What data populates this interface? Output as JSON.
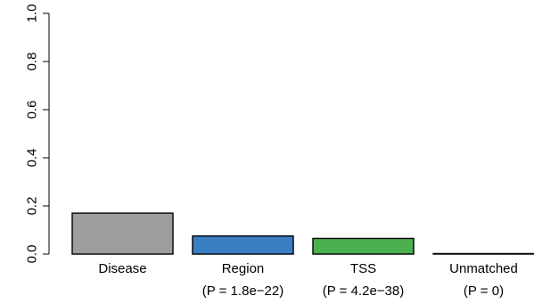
{
  "chart_data": {
    "type": "bar",
    "title": "",
    "xlabel": "",
    "ylabel": "",
    "ylim": [
      0,
      1
    ],
    "yticks": [
      "0.0",
      "0.2",
      "0.4",
      "0.6",
      "0.8",
      "1.0"
    ],
    "grid": false,
    "legend": "none",
    "categories": [
      "Disease",
      "Region",
      "TSS",
      "Unmatched"
    ],
    "category_sublabels": [
      "",
      "(P = 1.8e−22)",
      "(P = 4.2e−38)",
      "(P = 0)"
    ],
    "values": [
      0.17,
      0.075,
      0.065,
      0.002
    ],
    "colors": [
      "#9e9e9e",
      "#3a7fc4",
      "#4caf50",
      "#ffffff"
    ]
  }
}
